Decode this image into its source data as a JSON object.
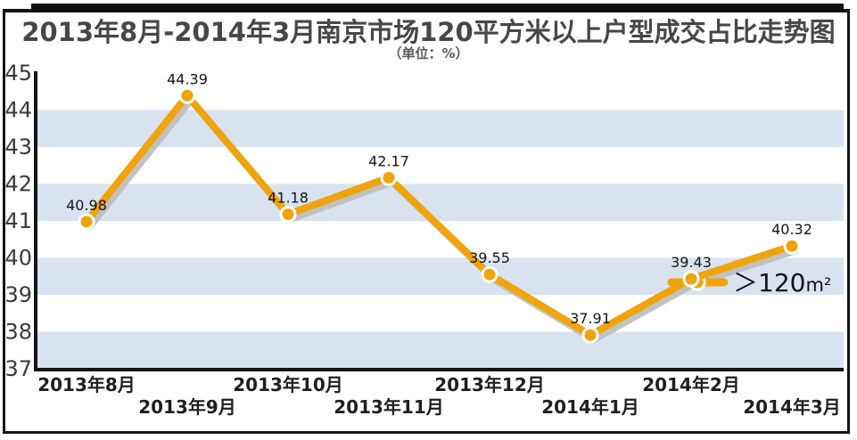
{
  "header": {
    "title": "2013年8月-2014年3月南京市场120平方米以上户型成交占比走势图",
    "subtitle": "（单位：%）"
  },
  "chart_data": {
    "type": "line",
    "title": "2013年8月-2014年3月南京市场120平方米以上户型成交占比走势图",
    "unit_label": "（单位：%）",
    "categories": [
      "2013年8月",
      "2013年9月",
      "2013年10月",
      "2013年11月",
      "2013年12月",
      "2014年1月",
      "2014年2月",
      "2014年3月"
    ],
    "series": [
      {
        "name": "＞120m²",
        "values": [
          40.98,
          44.39,
          41.18,
          42.17,
          39.55,
          37.91,
          39.43,
          40.32
        ],
        "data_labels": [
          "40.98",
          "44.39",
          "41.18",
          "42.17",
          "39.55",
          "37.91",
          "39.43",
          "40.32"
        ]
      }
    ],
    "xlabel": "",
    "ylabel": "",
    "ylim": [
      37,
      45
    ],
    "yticks": [
      45,
      44,
      43,
      42,
      41,
      40,
      39,
      38,
      37
    ],
    "grid": "alternating-horizontal-bands",
    "band_rows": [
      [
        37,
        38
      ],
      [
        39,
        40
      ],
      [
        41,
        42
      ],
      [
        43,
        44
      ]
    ],
    "legend": {
      "label": "＞120m²",
      "label_main": "＞120",
      "label_unit": "m²",
      "position": "middle-right"
    },
    "colors": {
      "line": "#F0A40B",
      "marker_fill": "#F0A40B",
      "marker_ring": "#FFFFFF",
      "shadow": "#BDBDBD",
      "band": "#D9E3F0",
      "axis": "#141414",
      "y_tick_text": "#3A3A3A",
      "x_tick_text": "#1F1F1F",
      "data_label": "#141414",
      "legend_text": "#111111"
    }
  }
}
